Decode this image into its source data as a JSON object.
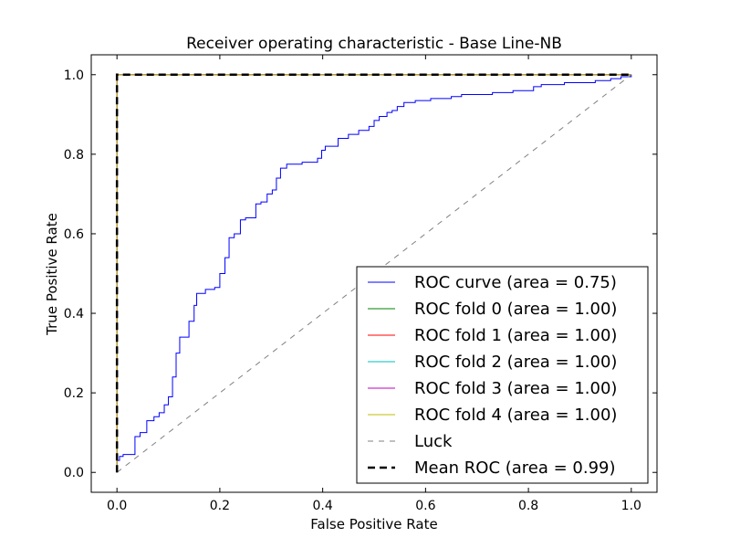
{
  "chart_data": {
    "type": "line",
    "title": "Receiver operating characteristic - Base Line-NB",
    "xlabel": "False Positive Rate",
    "ylabel": "True Positive Rate",
    "xlim": [
      -0.05,
      1.05
    ],
    "ylim": [
      -0.05,
      1.05
    ],
    "xticks": [
      "0.0",
      "0.2",
      "0.4",
      "0.6",
      "0.8",
      "1.0"
    ],
    "yticks": [
      "0.0",
      "0.2",
      "0.4",
      "0.6",
      "0.8",
      "1.0"
    ],
    "grid": false,
    "legend_position": "lower-right",
    "series": [
      {
        "name": "ROC curve (area = 0.75)",
        "color": "#0000ff",
        "style": "solid",
        "step": true,
        "points": [
          [
            0.0,
            0.0
          ],
          [
            0.0,
            0.03
          ],
          [
            0.005,
            0.03
          ],
          [
            0.005,
            0.04
          ],
          [
            0.012,
            0.04
          ],
          [
            0.012,
            0.045
          ],
          [
            0.035,
            0.045
          ],
          [
            0.035,
            0.09
          ],
          [
            0.045,
            0.09
          ],
          [
            0.045,
            0.1
          ],
          [
            0.058,
            0.1
          ],
          [
            0.058,
            0.13
          ],
          [
            0.072,
            0.13
          ],
          [
            0.072,
            0.14
          ],
          [
            0.082,
            0.14
          ],
          [
            0.082,
            0.15
          ],
          [
            0.092,
            0.15
          ],
          [
            0.092,
            0.17
          ],
          [
            0.1,
            0.17
          ],
          [
            0.1,
            0.19
          ],
          [
            0.108,
            0.19
          ],
          [
            0.108,
            0.24
          ],
          [
            0.115,
            0.24
          ],
          [
            0.115,
            0.3
          ],
          [
            0.122,
            0.3
          ],
          [
            0.122,
            0.34
          ],
          [
            0.14,
            0.34
          ],
          [
            0.14,
            0.38
          ],
          [
            0.15,
            0.38
          ],
          [
            0.15,
            0.42
          ],
          [
            0.155,
            0.42
          ],
          [
            0.155,
            0.45
          ],
          [
            0.172,
            0.45
          ],
          [
            0.172,
            0.46
          ],
          [
            0.19,
            0.46
          ],
          [
            0.19,
            0.465
          ],
          [
            0.2,
            0.465
          ],
          [
            0.2,
            0.5
          ],
          [
            0.21,
            0.5
          ],
          [
            0.21,
            0.54
          ],
          [
            0.218,
            0.54
          ],
          [
            0.218,
            0.59
          ],
          [
            0.228,
            0.59
          ],
          [
            0.228,
            0.6
          ],
          [
            0.24,
            0.6
          ],
          [
            0.24,
            0.635
          ],
          [
            0.25,
            0.635
          ],
          [
            0.25,
            0.64
          ],
          [
            0.27,
            0.64
          ],
          [
            0.27,
            0.675
          ],
          [
            0.28,
            0.675
          ],
          [
            0.28,
            0.68
          ],
          [
            0.292,
            0.68
          ],
          [
            0.292,
            0.7
          ],
          [
            0.302,
            0.7
          ],
          [
            0.302,
            0.71
          ],
          [
            0.31,
            0.71
          ],
          [
            0.31,
            0.74
          ],
          [
            0.318,
            0.74
          ],
          [
            0.318,
            0.765
          ],
          [
            0.33,
            0.765
          ],
          [
            0.33,
            0.775
          ],
          [
            0.36,
            0.775
          ],
          [
            0.36,
            0.78
          ],
          [
            0.39,
            0.78
          ],
          [
            0.39,
            0.79
          ],
          [
            0.398,
            0.79
          ],
          [
            0.398,
            0.81
          ],
          [
            0.405,
            0.81
          ],
          [
            0.405,
            0.82
          ],
          [
            0.43,
            0.82
          ],
          [
            0.43,
            0.84
          ],
          [
            0.45,
            0.84
          ],
          [
            0.45,
            0.85
          ],
          [
            0.47,
            0.85
          ],
          [
            0.47,
            0.86
          ],
          [
            0.49,
            0.86
          ],
          [
            0.49,
            0.87
          ],
          [
            0.5,
            0.87
          ],
          [
            0.5,
            0.885
          ],
          [
            0.51,
            0.885
          ],
          [
            0.51,
            0.895
          ],
          [
            0.525,
            0.895
          ],
          [
            0.525,
            0.905
          ],
          [
            0.535,
            0.905
          ],
          [
            0.535,
            0.91
          ],
          [
            0.545,
            0.91
          ],
          [
            0.545,
            0.92
          ],
          [
            0.558,
            0.92
          ],
          [
            0.558,
            0.93
          ],
          [
            0.58,
            0.93
          ],
          [
            0.58,
            0.935
          ],
          [
            0.61,
            0.935
          ],
          [
            0.61,
            0.94
          ],
          [
            0.65,
            0.94
          ],
          [
            0.65,
            0.945
          ],
          [
            0.67,
            0.945
          ],
          [
            0.67,
            0.95
          ],
          [
            0.73,
            0.95
          ],
          [
            0.73,
            0.955
          ],
          [
            0.77,
            0.955
          ],
          [
            0.77,
            0.96
          ],
          [
            0.81,
            0.96
          ],
          [
            0.81,
            0.97
          ],
          [
            0.825,
            0.97
          ],
          [
            0.825,
            0.975
          ],
          [
            0.87,
            0.975
          ],
          [
            0.87,
            0.98
          ],
          [
            0.93,
            0.98
          ],
          [
            0.93,
            0.985
          ],
          [
            0.96,
            0.985
          ],
          [
            0.96,
            0.99
          ],
          [
            0.98,
            0.99
          ],
          [
            0.98,
            0.995
          ],
          [
            1.0,
            0.995
          ],
          [
            1.0,
            1.0
          ]
        ]
      },
      {
        "name": "ROC fold 0 (area = 1.00)",
        "color": "#008000",
        "style": "solid",
        "points": [
          [
            0.0,
            0.0
          ],
          [
            0.0,
            1.0
          ],
          [
            1.0,
            1.0
          ]
        ]
      },
      {
        "name": "ROC fold 1 (area = 1.00)",
        "color": "#ff0000",
        "style": "solid",
        "points": [
          [
            0.0,
            0.0
          ],
          [
            0.0,
            1.0
          ],
          [
            1.0,
            1.0
          ]
        ]
      },
      {
        "name": "ROC fold 2 (area = 1.00)",
        "color": "#00bfbf",
        "style": "solid",
        "points": [
          [
            0.0,
            0.0
          ],
          [
            0.0,
            1.0
          ],
          [
            1.0,
            1.0
          ]
        ]
      },
      {
        "name": "ROC fold 3 (area = 1.00)",
        "color": "#bf00bf",
        "style": "solid",
        "points": [
          [
            0.0,
            0.0
          ],
          [
            0.0,
            1.0
          ],
          [
            1.0,
            1.0
          ]
        ]
      },
      {
        "name": "ROC fold 4 (area = 1.00)",
        "color": "#bfbf00",
        "style": "solid",
        "points": [
          [
            0.0,
            0.0
          ],
          [
            0.0,
            1.0
          ],
          [
            1.0,
            1.0
          ]
        ]
      },
      {
        "name": "Luck",
        "color": "#808080",
        "style": "dashed",
        "points": [
          [
            0.0,
            0.0
          ],
          [
            1.0,
            1.0
          ]
        ]
      },
      {
        "name": "Mean ROC (area = 0.99)",
        "color": "#000000",
        "style": "dashed-bold",
        "points": [
          [
            0.0,
            0.0
          ],
          [
            0.0,
            1.0
          ],
          [
            0.01,
            1.0
          ],
          [
            1.0,
            1.0
          ]
        ]
      }
    ]
  }
}
